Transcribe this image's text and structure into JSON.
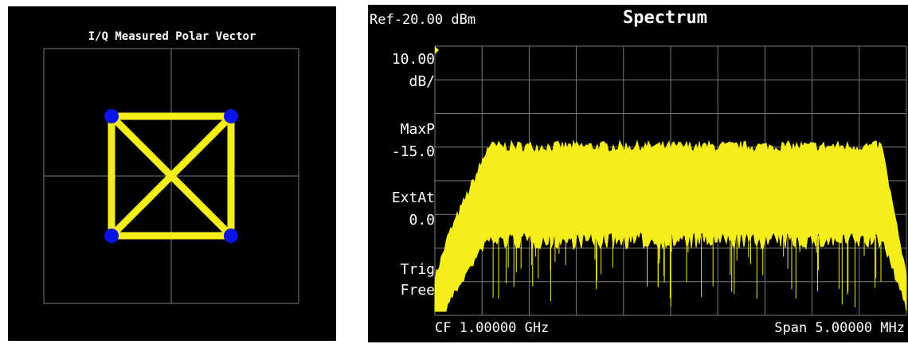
{
  "polar": {
    "title": "I/Q Measured Polar Vector",
    "constellation": [
      "1+j",
      "-1+j",
      "-1-j",
      "1-j"
    ],
    "colors": {
      "trace": "#f5ee1a",
      "point": "#0a14e8",
      "grid": "#7a7a7a",
      "background": "#000000"
    }
  },
  "spectrum": {
    "title": "Spectrum",
    "ref_level": "Ref-20.00 dBm",
    "scale_value": "10.00",
    "scale_unit": "dB/",
    "detector_label": "MaxP",
    "detector_value": "-15.0",
    "ext_att_label": "ExtAt",
    "ext_att_value": "0.0",
    "trig_label": "Trig",
    "trig_value": "Free",
    "center_freq": "CF 1.00000 GHz",
    "span": "Span  5.00000 MHz",
    "colors": {
      "trace": "#f5ee1a",
      "grid": "#7a7a7a",
      "text": "#ffffff",
      "ref_marker": "#f5ee1a"
    }
  }
}
